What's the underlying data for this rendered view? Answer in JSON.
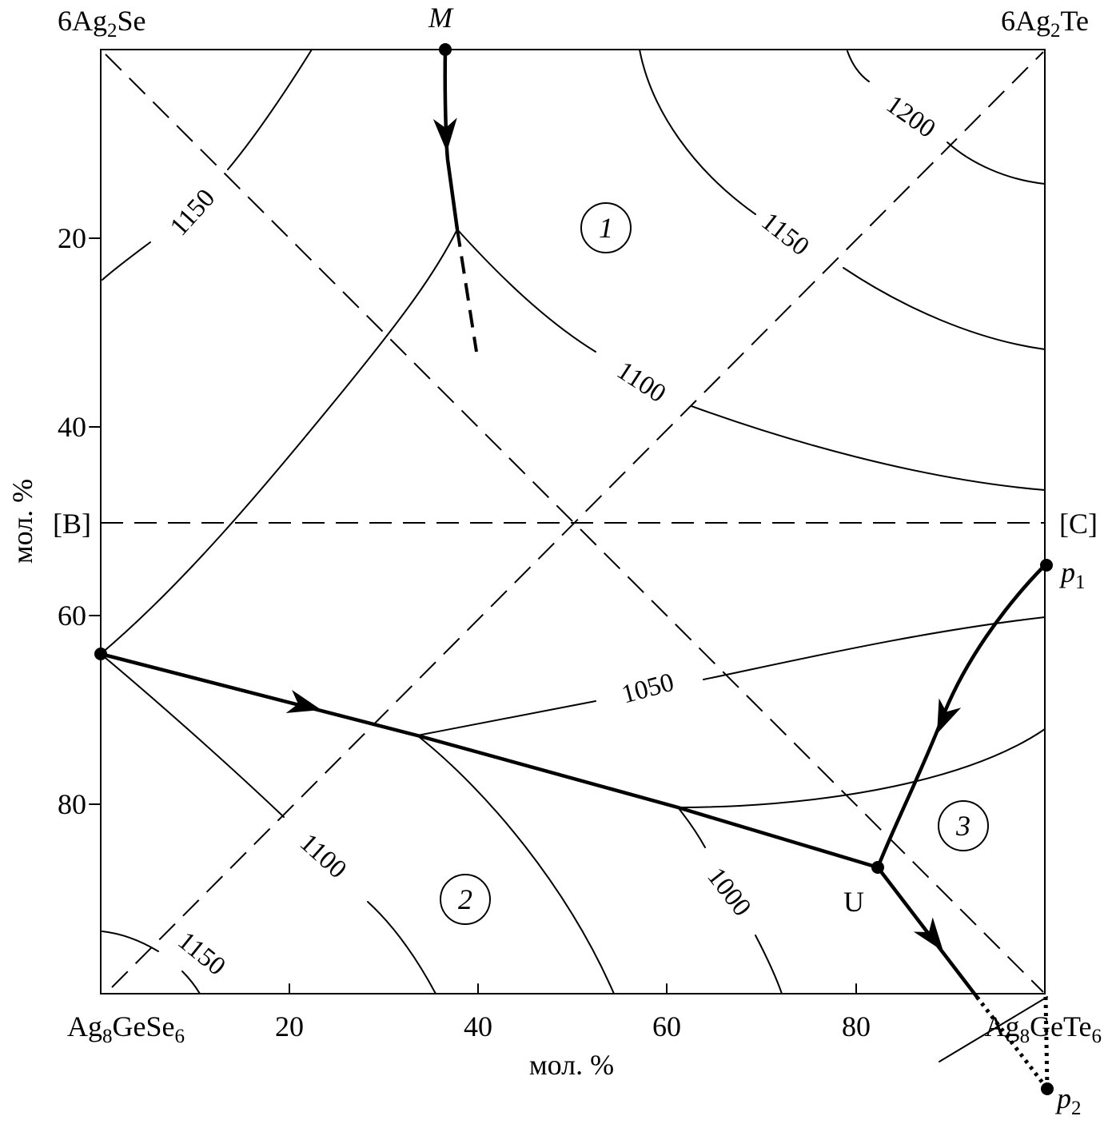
{
  "corners": {
    "top_left": [
      "6Ag",
      "2",
      "Se"
    ],
    "top_right": [
      "6Ag",
      "2",
      "Te"
    ],
    "bottom_left": [
      "Ag",
      "8",
      "GeSe",
      "6"
    ],
    "bottom_right": [
      "Ag",
      "8",
      "GeTe",
      "6"
    ]
  },
  "axes": {
    "x_label": "мол. %",
    "y_label": "мол. %",
    "x_ticks": [
      20,
      40,
      60,
      80
    ],
    "y_ticks": [
      20,
      40,
      60,
      80
    ]
  },
  "section_ends": {
    "left": "[B]",
    "right": "[C]"
  },
  "points": {
    "M": "M",
    "U": "U",
    "p1": [
      "p",
      "1"
    ],
    "p2": [
      "p",
      "2"
    ]
  },
  "fields": [
    "1",
    "2",
    "3"
  ],
  "isotherm_labels": [
    "1150",
    "1200",
    "1150",
    "1100",
    "1050",
    "1100",
    "1000",
    "1150"
  ]
}
